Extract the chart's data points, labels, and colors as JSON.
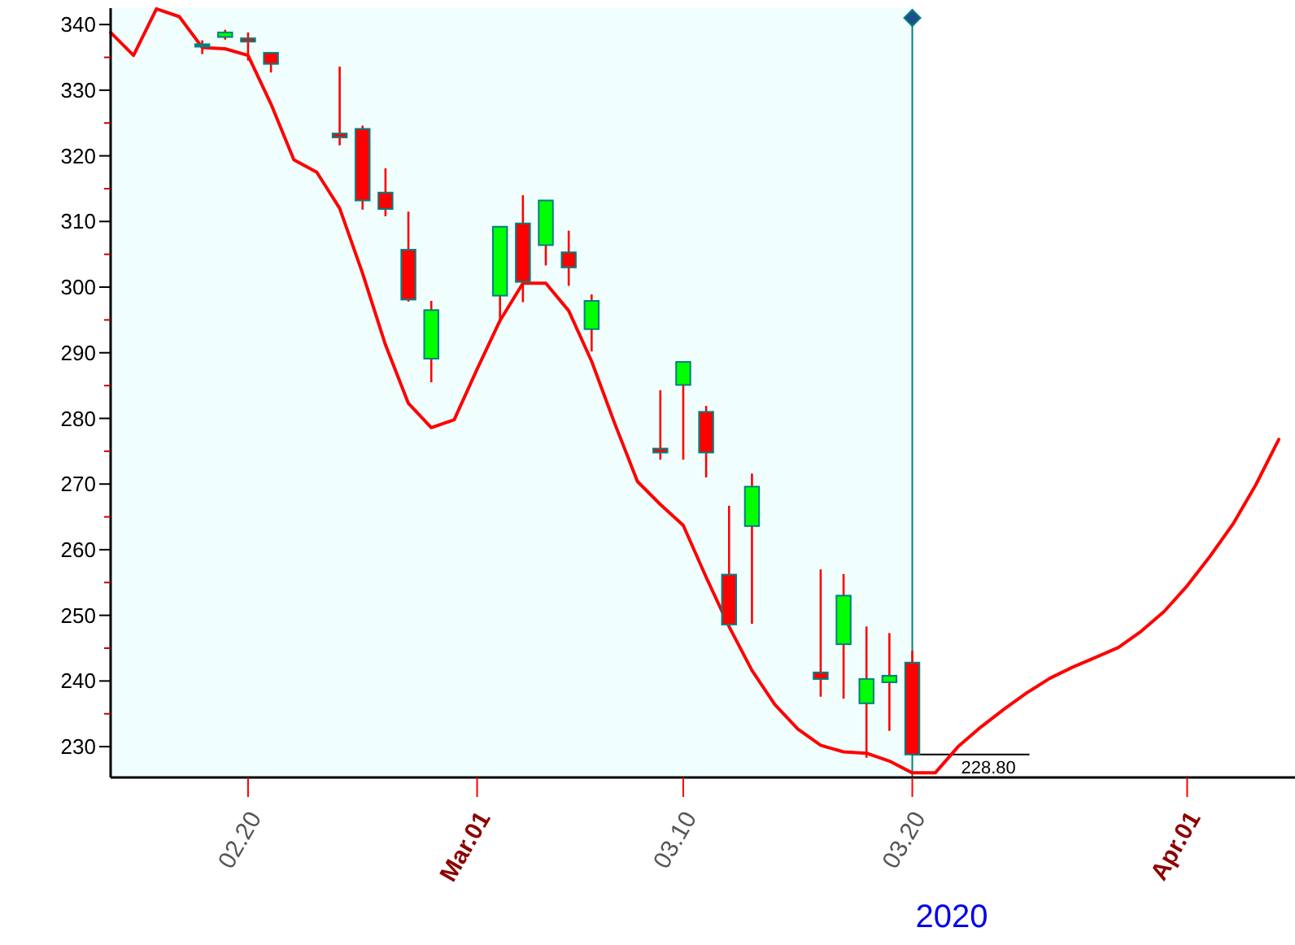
{
  "chart_data": {
    "type": "candlestick",
    "annotations": [
      {
        "text": "228.80",
        "x": "2020-03-20",
        "y": 228.8
      },
      "2020"
    ],
    "xlim": [
      "2020-02-14",
      "2020-04-05T17:00"
    ],
    "xticks": [
      {
        "value": "2020-02-20",
        "label": "02.20"
      },
      {
        "value": "2020-03-01",
        "label": "Mar.01"
      },
      {
        "value": "2020-03-10",
        "label": "03.10"
      },
      {
        "value": "2020-03-20",
        "label": "03.20"
      },
      {
        "value": "2020-04-01",
        "label": "Apr.01"
      }
    ],
    "ylim": [
      225.3,
      342.5
    ],
    "yticks": [
      230,
      {
        "value": 235,
        "label": null
      },
      240,
      {
        "value": 245,
        "label": null
      },
      250,
      {
        "value": 255,
        "label": null
      },
      260,
      {
        "value": 265,
        "label": null
      },
      270,
      {
        "value": 275,
        "label": null
      },
      280,
      {
        "value": 285,
        "label": null
      },
      290,
      {
        "value": 295,
        "label": null
      },
      300,
      {
        "value": 305,
        "label": null
      },
      310,
      {
        "value": 315,
        "label": null
      },
      320,
      {
        "value": 325,
        "label": null
      },
      330,
      {
        "value": 335,
        "label": null
      },
      340
    ],
    "bands": [
      {
        "axis": "x",
        "from": "2020-02-14",
        "to": "2020-03-20",
        "color": "#f0fefe"
      }
    ],
    "ref_lines": [
      {
        "axis": "x",
        "value": "2020-03-20",
        "color": "#008080"
      }
    ],
    "series": [
      {
        "type": "line",
        "color": "#ff0000",
        "x": [
          "2020-02-14",
          "2020-02-15",
          "2020-02-16",
          "2020-02-17",
          "2020-02-18",
          "2020-02-19",
          "2020-02-20",
          "2020-02-21",
          "2020-02-22",
          "2020-02-23",
          "2020-02-24",
          "2020-02-25",
          "2020-02-26",
          "2020-02-27",
          "2020-02-28",
          "2020-02-29",
          "2020-03-01",
          "2020-03-02",
          "2020-03-03",
          "2020-03-04",
          "2020-03-05",
          "2020-03-06",
          "2020-03-07",
          "2020-03-08",
          "2020-03-09",
          "2020-03-10",
          "2020-03-11",
          "2020-03-12",
          "2020-03-13",
          "2020-03-14",
          "2020-03-15",
          "2020-03-16",
          "2020-03-17",
          "2020-03-18",
          "2020-03-19",
          "2020-03-20",
          "2020-03-21",
          "2020-03-22",
          "2020-03-23",
          "2020-03-24",
          "2020-03-25",
          "2020-03-26",
          "2020-03-27",
          "2020-03-28",
          "2020-03-29",
          "2020-03-30",
          "2020-03-31",
          "2020-04-01",
          "2020-04-02",
          "2020-04-03",
          "2020-04-04",
          "2020-04-05"
        ],
        "values": [
          338.8,
          335.3,
          342.4,
          341.2,
          336.5,
          336.3,
          335.3,
          327.9,
          319.4,
          317.5,
          312.0,
          302.1,
          291.2,
          282.3,
          278.6,
          279.8,
          287.5,
          294.9,
          300.6,
          300.6,
          296.4,
          288.7,
          279.3,
          270.4,
          266.9,
          263.7,
          255.8,
          248.3,
          241.6,
          236.4,
          232.7,
          230.2,
          229.2,
          229.0,
          227.8,
          226.0,
          226.0,
          230.0,
          233.0,
          235.7,
          238.2,
          240.4,
          242.1,
          243.6,
          245.1,
          247.6,
          250.6,
          254.5,
          259.0,
          263.9,
          269.9,
          276.8
        ]
      },
      {
        "x": [
          "2020-02-18",
          "2020-02-19",
          "2020-02-20",
          "2020-02-21",
          "2020-02-24",
          "2020-02-25",
          "2020-02-26",
          "2020-02-27",
          "2020-02-28",
          "2020-03-02",
          "2020-03-03",
          "2020-03-04",
          "2020-03-05",
          "2020-03-06",
          "2020-03-09",
          "2020-03-10",
          "2020-03-11",
          "2020-03-12",
          "2020-03-13",
          "2020-03-16",
          "2020-03-17",
          "2020-03-18",
          "2020-03-19",
          "2020-03-20"
        ],
        "colors": [
          "#008080",
          "#00ff00",
          "#ff0000",
          "#ff0000",
          "#ff0000",
          "#ff0000",
          "#ff0000",
          "#ff0000",
          "#00ff00",
          "#00ff00",
          "#ff0000",
          "#00ff00",
          "#ff0000",
          "#00ff00",
          "#ff0000",
          "#00ff00",
          "#ff0000",
          "#ff0000",
          "#00ff00",
          "#ff0000",
          "#00ff00",
          "#00ff00",
          "#00ff00",
          "#ff0000"
        ],
        "ohlc": [
          [
            336.9,
            337.6,
            335.5,
            337.0
          ],
          [
            338.1,
            339.2,
            337.7,
            338.8
          ],
          [
            337.9,
            338.8,
            334.5,
            337.4
          ],
          [
            335.7,
            335.7,
            332.7,
            334.0
          ],
          [
            323.4,
            333.6,
            321.6,
            322.8
          ],
          [
            324.1,
            324.6,
            311.8,
            313.2
          ],
          [
            314.4,
            318.1,
            310.8,
            311.9
          ],
          [
            305.7,
            311.5,
            297.8,
            298.1
          ],
          [
            289.1,
            297.9,
            285.5,
            296.5
          ],
          [
            298.7,
            309.2,
            294.6,
            309.2
          ],
          [
            309.7,
            314.0,
            297.7,
            300.8
          ],
          [
            306.4,
            313.2,
            303.3,
            313.2
          ],
          [
            305.3,
            308.6,
            300.2,
            303.0
          ],
          [
            293.6,
            298.9,
            290.2,
            297.9
          ],
          [
            275.4,
            284.3,
            273.7,
            274.8
          ],
          [
            285.1,
            288.6,
            273.7,
            288.6
          ],
          [
            281.0,
            281.9,
            271.0,
            274.8
          ],
          [
            256.2,
            266.7,
            248.6,
            248.6
          ],
          [
            263.6,
            271.6,
            248.7,
            269.6
          ],
          [
            241.3,
            257.0,
            237.6,
            240.3
          ],
          [
            245.6,
            256.3,
            237.3,
            253.0
          ],
          [
            236.6,
            248.3,
            228.3,
            240.3
          ],
          [
            239.8,
            247.3,
            232.4,
            240.8
          ],
          [
            242.8,
            244.6,
            228.8,
            228.8
          ]
        ]
      }
    ]
  }
}
